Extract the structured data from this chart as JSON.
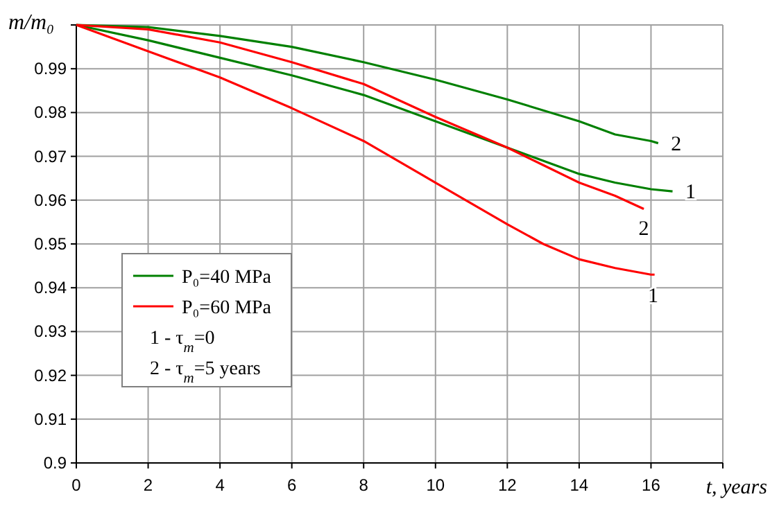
{
  "chart_data": {
    "type": "line",
    "xlabel": "t, years",
    "ylabel": "m/m₀",
    "xlim": [
      0,
      18
    ],
    "xticks": [
      0,
      2,
      4,
      6,
      8,
      10,
      12,
      14,
      16
    ],
    "ylim": [
      0.9,
      1
    ],
    "yticks": [
      0.9,
      0.91,
      0.92,
      0.93,
      0.94,
      0.95,
      0.96,
      0.97,
      0.98,
      0.99,
      {
        "value": 1,
        "label": null
      }
    ],
    "grid": true,
    "legend": "left",
    "marker": "none",
    "line_style": "solid",
    "series": [
      {
        "name": "P₀=40 MPa",
        "color": "#008000",
        "x": [
          0,
          2,
          4,
          6,
          8,
          10,
          12,
          13,
          14,
          15,
          16,
          16.6
        ],
        "values": [
          1,
          0.9965,
          0.9925,
          0.9885,
          0.984,
          0.978,
          0.972,
          0.969,
          0.966,
          0.964,
          0.9625,
          0.962
        ]
      },
      {
        "name": "P₀=60 MPa",
        "color": "#ff0000",
        "x": [
          0,
          2,
          4,
          6,
          8,
          10,
          12,
          13,
          14,
          15,
          16,
          16.1
        ],
        "values": [
          1,
          0.994,
          0.988,
          0.981,
          0.9735,
          0.964,
          0.9545,
          0.95,
          0.9465,
          0.9445,
          0.943,
          0.943
        ]
      },
      {
        "color": "#008000",
        "x": [
          0,
          2,
          4,
          6,
          8,
          10,
          12,
          14,
          15,
          16,
          16.2
        ],
        "values": [
          1,
          0.9995,
          0.9975,
          0.995,
          0.9915,
          0.9875,
          0.983,
          0.978,
          0.975,
          0.9735,
          0.973
        ]
      },
      {
        "color": "#ff0000",
        "x": [
          0,
          2,
          4,
          6,
          8,
          10,
          12,
          13,
          14,
          15,
          15.8
        ],
        "values": [
          1,
          0.999,
          0.996,
          0.9915,
          0.9865,
          0.979,
          0.972,
          0.968,
          0.964,
          0.961,
          0.958
        ]
      }
    ],
    "annotations": [
      "1 - τ$_{m}$=0",
      "2 - τ$_{m}$=5 years",
      {
        "text": "2",
        "x": 16.2,
        "y": 0.973
      },
      {
        "text": "1",
        "x": 16.6,
        "y": 0.962
      },
      {
        "text": "2",
        "x": 15.8,
        "y": 0.958
      },
      {
        "text": "1",
        "x": 16.1,
        "y": 0.943
      }
    ]
  }
}
